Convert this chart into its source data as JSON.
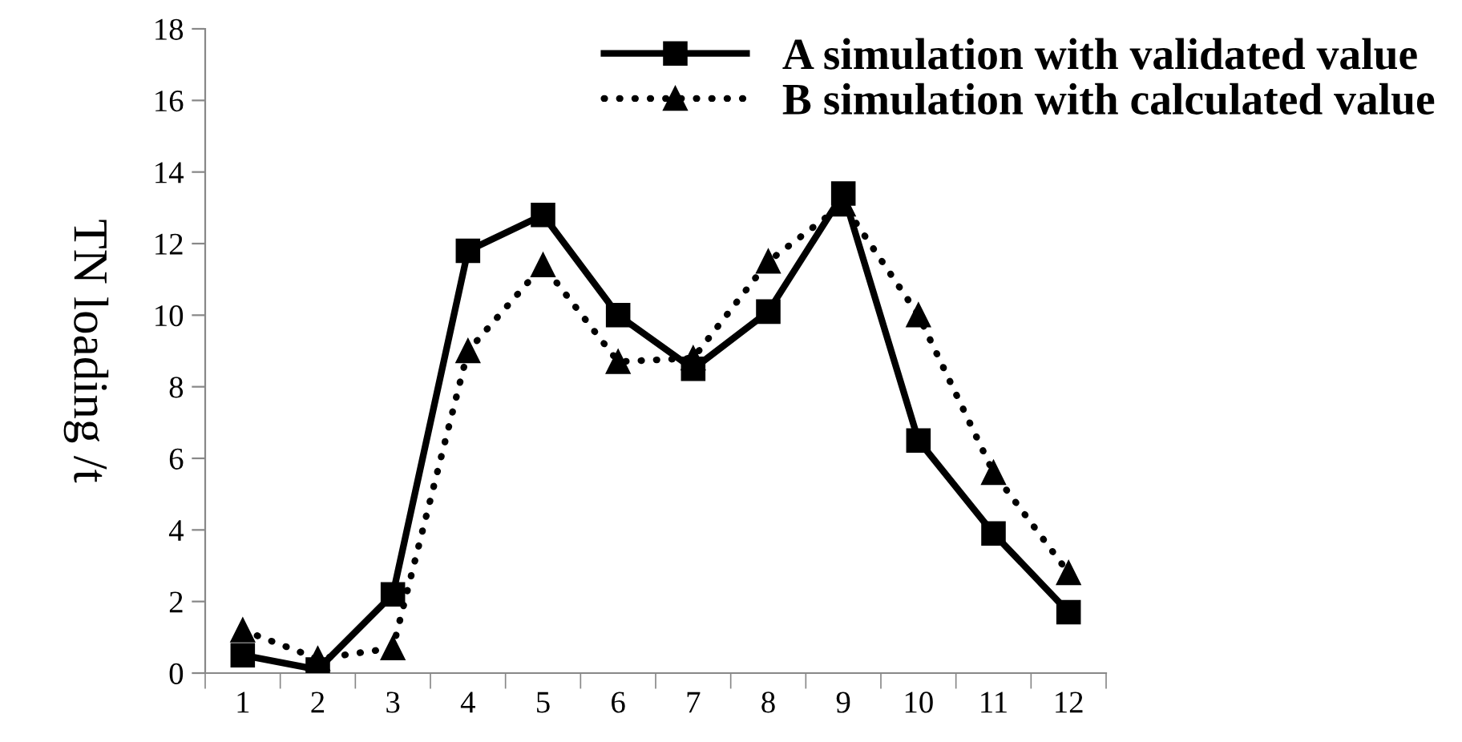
{
  "chart_data": {
    "type": "line",
    "ylabel": "TN loading /t",
    "categories": [
      "1",
      "2",
      "3",
      "4",
      "5",
      "6",
      "7",
      "8",
      "9",
      "10",
      "11",
      "12"
    ],
    "series": [
      {
        "name": "A simulation with validated value",
        "color": "#000000",
        "marker": "square",
        "line_style": "solid",
        "values": [
          0.5,
          0.1,
          2.2,
          11.8,
          12.8,
          10.0,
          8.5,
          10.1,
          13.4,
          6.5,
          3.9,
          1.7
        ]
      },
      {
        "name": "B simulation with calculated value",
        "color": "#000000",
        "marker": "triangle",
        "line_style": "dotted",
        "values": [
          1.2,
          0.4,
          0.7,
          9.0,
          11.4,
          8.7,
          8.8,
          11.5,
          13.1,
          10.0,
          5.6,
          2.8
        ]
      }
    ],
    "ylim": [
      0,
      18
    ],
    "yticks": [
      0,
      2,
      4,
      6,
      8,
      10,
      12,
      14,
      16,
      18
    ],
    "grid": false,
    "legend": "top right"
  }
}
